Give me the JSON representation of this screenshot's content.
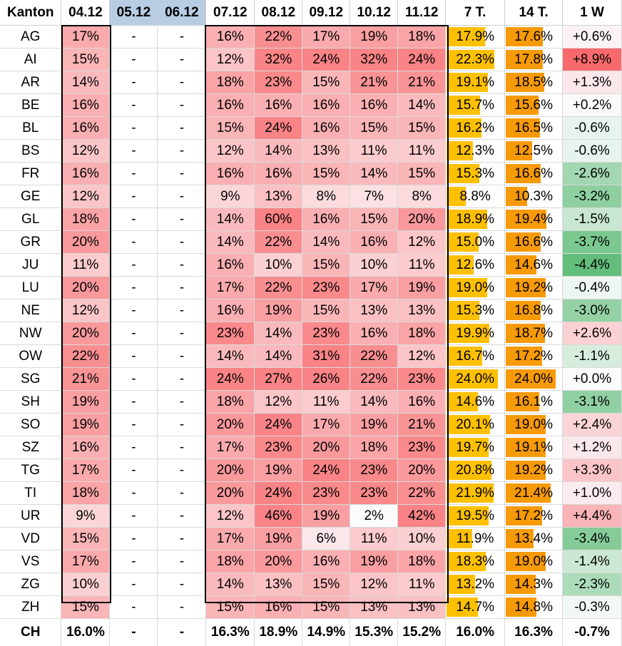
{
  "colors": {
    "heat_max": "#f8696b",
    "heat_min": "#fcfcff",
    "bar7": "#ffc000",
    "bar14": "#f79a08",
    "neg": "#63be7b",
    "pos": "#f8696b",
    "header_blue": "#b8cce4"
  },
  "headers": [
    "Kanton",
    "04.12",
    "05.12",
    "06.12",
    "07.12",
    "08.12",
    "09.12",
    "10.12",
    "11.12",
    "7 T.",
    "14 T.",
    "1 W"
  ],
  "rows": [
    {
      "k": "AG",
      "d": [
        "17%",
        "-",
        "-",
        "16%",
        "22%",
        "17%",
        "19%",
        "18%"
      ],
      "t7": "17.9%",
      "t14": "17.6%",
      "w": "+0.6%"
    },
    {
      "k": "AI",
      "d": [
        "15%",
        "-",
        "-",
        "12%",
        "32%",
        "24%",
        "32%",
        "24%"
      ],
      "t7": "22.3%",
      "t14": "17.8%",
      "w": "+8.9%"
    },
    {
      "k": "AR",
      "d": [
        "14%",
        "-",
        "-",
        "18%",
        "23%",
        "15%",
        "21%",
        "21%"
      ],
      "t7": "19.1%",
      "t14": "18.5%",
      "w": "+1.3%"
    },
    {
      "k": "BE",
      "d": [
        "16%",
        "-",
        "-",
        "16%",
        "16%",
        "16%",
        "16%",
        "14%"
      ],
      "t7": "15.7%",
      "t14": "15.6%",
      "w": "+0.2%"
    },
    {
      "k": "BL",
      "d": [
        "16%",
        "-",
        "-",
        "15%",
        "24%",
        "16%",
        "15%",
        "15%"
      ],
      "t7": "16.2%",
      "t14": "16.5%",
      "w": "-0.6%"
    },
    {
      "k": "BS",
      "d": [
        "12%",
        "-",
        "-",
        "12%",
        "14%",
        "13%",
        "11%",
        "11%"
      ],
      "t7": "12.3%",
      "t14": "12.5%",
      "w": "-0.6%"
    },
    {
      "k": "FR",
      "d": [
        "16%",
        "-",
        "-",
        "16%",
        "16%",
        "15%",
        "14%",
        "15%"
      ],
      "t7": "15.3%",
      "t14": "16.6%",
      "w": "-2.6%"
    },
    {
      "k": "GE",
      "d": [
        "12%",
        "-",
        "-",
        "9%",
        "13%",
        "8%",
        "7%",
        "8%"
      ],
      "t7": "8.8%",
      "t14": "10.3%",
      "w": "-3.2%"
    },
    {
      "k": "GL",
      "d": [
        "18%",
        "-",
        "-",
        "14%",
        "60%",
        "16%",
        "15%",
        "20%"
      ],
      "t7": "18.9%",
      "t14": "19.4%",
      "w": "-1.5%"
    },
    {
      "k": "GR",
      "d": [
        "20%",
        "-",
        "-",
        "14%",
        "22%",
        "14%",
        "16%",
        "12%"
      ],
      "t7": "15.0%",
      "t14": "16.6%",
      "w": "-3.7%"
    },
    {
      "k": "JU",
      "d": [
        "11%",
        "-",
        "-",
        "16%",
        "10%",
        "15%",
        "10%",
        "11%"
      ],
      "t7": "12.6%",
      "t14": "14.6%",
      "w": "-4.4%"
    },
    {
      "k": "LU",
      "d": [
        "20%",
        "-",
        "-",
        "17%",
        "22%",
        "23%",
        "17%",
        "19%"
      ],
      "t7": "19.0%",
      "t14": "19.2%",
      "w": "-0.4%"
    },
    {
      "k": "NE",
      "d": [
        "12%",
        "-",
        "-",
        "16%",
        "19%",
        "15%",
        "13%",
        "13%"
      ],
      "t7": "15.3%",
      "t14": "16.8%",
      "w": "-3.0%"
    },
    {
      "k": "NW",
      "d": [
        "20%",
        "-",
        "-",
        "23%",
        "14%",
        "23%",
        "16%",
        "18%"
      ],
      "t7": "19.9%",
      "t14": "18.7%",
      "w": "+2.6%"
    },
    {
      "k": "OW",
      "d": [
        "22%",
        "-",
        "-",
        "14%",
        "14%",
        "31%",
        "22%",
        "12%"
      ],
      "t7": "16.7%",
      "t14": "17.2%",
      "w": "-1.1%"
    },
    {
      "k": "SG",
      "d": [
        "21%",
        "-",
        "-",
        "24%",
        "27%",
        "26%",
        "22%",
        "23%"
      ],
      "t7": "24.0%",
      "t14": "24.0%",
      "w": "+0.0%"
    },
    {
      "k": "SH",
      "d": [
        "19%",
        "-",
        "-",
        "18%",
        "12%",
        "11%",
        "14%",
        "16%"
      ],
      "t7": "14.6%",
      "t14": "16.1%",
      "w": "-3.1%"
    },
    {
      "k": "SO",
      "d": [
        "19%",
        "-",
        "-",
        "20%",
        "24%",
        "17%",
        "19%",
        "21%"
      ],
      "t7": "20.1%",
      "t14": "19.0%",
      "w": "+2.4%"
    },
    {
      "k": "SZ",
      "d": [
        "16%",
        "-",
        "-",
        "17%",
        "23%",
        "20%",
        "18%",
        "23%"
      ],
      "t7": "19.7%",
      "t14": "19.1%",
      "w": "+1.2%"
    },
    {
      "k": "TG",
      "d": [
        "17%",
        "-",
        "-",
        "20%",
        "19%",
        "24%",
        "23%",
        "20%"
      ],
      "t7": "20.8%",
      "t14": "19.2%",
      "w": "+3.3%"
    },
    {
      "k": "TI",
      "d": [
        "18%",
        "-",
        "-",
        "20%",
        "24%",
        "23%",
        "23%",
        "22%"
      ],
      "t7": "21.9%",
      "t14": "21.4%",
      "w": "+1.0%"
    },
    {
      "k": "UR",
      "d": [
        "9%",
        "-",
        "-",
        "12%",
        "46%",
        "19%",
        "2%",
        "42%"
      ],
      "t7": "19.5%",
      "t14": "17.2%",
      "w": "+4.4%"
    },
    {
      "k": "VD",
      "d": [
        "15%",
        "-",
        "-",
        "17%",
        "19%",
        "6%",
        "11%",
        "10%"
      ],
      "t7": "11.9%",
      "t14": "13.4%",
      "w": "-3.4%"
    },
    {
      "k": "VS",
      "d": [
        "17%",
        "-",
        "-",
        "18%",
        "20%",
        "16%",
        "19%",
        "18%"
      ],
      "t7": "18.3%",
      "t14": "19.0%",
      "w": "-1.4%"
    },
    {
      "k": "ZG",
      "d": [
        "10%",
        "-",
        "-",
        "14%",
        "13%",
        "15%",
        "12%",
        "11%"
      ],
      "t7": "13.2%",
      "t14": "14.3%",
      "w": "-2.3%"
    },
    {
      "k": "ZH",
      "d": [
        "15%",
        "-",
        "-",
        "15%",
        "16%",
        "15%",
        "13%",
        "13%"
      ],
      "t7": "14.7%",
      "t14": "14.8%",
      "w": "-0.3%"
    }
  ],
  "total": {
    "k": "CH",
    "d": [
      "16.0%",
      "-",
      "-",
      "16.3%",
      "18.9%",
      "14.9%",
      "15.3%",
      "15.2%"
    ],
    "t7": "16.0%",
    "t14": "16.3%",
    "w": "-0.7%"
  }
}
